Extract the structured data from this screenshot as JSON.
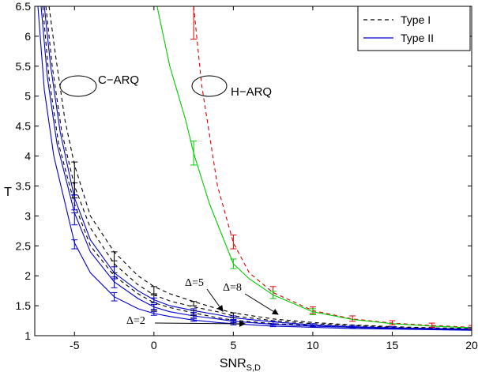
{
  "chart_data": {
    "type": "line",
    "xlabel": "SNR",
    "xlabel_sub": "S,D",
    "ylabel": "T",
    "xlim": [
      -7.5,
      20
    ],
    "ylim": [
      1,
      6.5
    ],
    "xticks": [
      -5,
      0,
      5,
      10,
      15,
      20
    ],
    "yticks": [
      1,
      1.5,
      2,
      2.5,
      3,
      3.5,
      4,
      4.5,
      5,
      5.5,
      6,
      6.5
    ],
    "grid": false,
    "legend_position": "top-right",
    "legend": [
      {
        "label": "Type I",
        "color": "#000000",
        "dash": true
      },
      {
        "label": "Type II",
        "color": "#0000cc",
        "dash": false
      }
    ],
    "annotations": {
      "carq": "C−ARQ",
      "harq": "H−ARQ",
      "delta5": "Δ=5",
      "delta8": "Δ=8",
      "delta2": "Δ=2"
    },
    "series": [
      {
        "group": "C-ARQ Type I",
        "color": "#000000",
        "dash": true,
        "x": [
          -6.6,
          -6.2,
          -5.6,
          -5,
          -4,
          -2.5,
          -1,
          0,
          1,
          2.5,
          4,
          5,
          7.5,
          10,
          12.5,
          15,
          17.5,
          20
        ],
        "y": [
          6.5,
          5.7,
          4.6,
          3.85,
          3.0,
          2.4,
          2.0,
          1.82,
          1.7,
          1.57,
          1.45,
          1.38,
          1.28,
          1.22,
          1.18,
          1.15,
          1.13,
          1.12
        ]
      },
      {
        "group": "C-ARQ Type I",
        "color": "#000000",
        "dash": true,
        "x": [
          -6.8,
          -6.4,
          -5.8,
          -5,
          -4,
          -2.5,
          -1,
          0,
          1,
          2.5,
          4,
          5,
          7.5,
          10,
          12.5,
          15,
          17.5,
          20
        ],
        "y": [
          6.5,
          5.5,
          4.4,
          3.5,
          2.8,
          2.2,
          1.85,
          1.68,
          1.58,
          1.48,
          1.4,
          1.33,
          1.25,
          1.2,
          1.17,
          1.14,
          1.12,
          1.11
        ]
      },
      {
        "group": "C-ARQ Type I",
        "color": "#000000",
        "dash": true,
        "x": [
          -7.0,
          -6.6,
          -6.0,
          -5,
          -4,
          -2.5,
          -1,
          0,
          1,
          2.5,
          4,
          5,
          7.5,
          10,
          12.5,
          15,
          17.5,
          20
        ],
        "y": [
          6.5,
          5.3,
          4.2,
          3.2,
          2.5,
          2.0,
          1.7,
          1.55,
          1.47,
          1.38,
          1.3,
          1.26,
          1.2,
          1.17,
          1.14,
          1.12,
          1.11,
          1.1
        ]
      },
      {
        "group": "C-ARQ Type II",
        "color": "#0000cc",
        "dash": false,
        "x": [
          -6.9,
          -6.5,
          -5.9,
          -5,
          -4,
          -2.5,
          -1,
          0,
          1,
          2.5,
          4,
          5,
          7.5,
          10,
          12.5,
          15,
          17.5,
          20
        ],
        "y": [
          6.5,
          5.5,
          4.4,
          3.3,
          2.6,
          2.05,
          1.75,
          1.6,
          1.5,
          1.42,
          1.35,
          1.3,
          1.23,
          1.18,
          1.15,
          1.13,
          1.12,
          1.11
        ]
      },
      {
        "group": "C-ARQ Type II",
        "color": "#0000cc",
        "dash": false,
        "x": [
          -7.1,
          -6.7,
          -6.1,
          -5,
          -4,
          -2.5,
          -1,
          0,
          1,
          2.5,
          4,
          5,
          7.5,
          10,
          12.5,
          15,
          17.5,
          20
        ],
        "y": [
          6.5,
          5.3,
          4.2,
          3.05,
          2.4,
          1.9,
          1.62,
          1.48,
          1.4,
          1.33,
          1.28,
          1.24,
          1.19,
          1.16,
          1.14,
          1.12,
          1.11,
          1.1
        ]
      },
      {
        "group": "C-ARQ Type II",
        "color": "#0000cc",
        "dash": false,
        "x": [
          -7.3,
          -6.9,
          -6.3,
          -5,
          -4,
          -2.5,
          -1,
          0,
          1,
          2.5,
          4,
          5,
          7.5,
          10,
          12.5,
          15,
          17.5,
          20
        ],
        "y": [
          6.5,
          5.1,
          4.0,
          2.55,
          2.05,
          1.65,
          1.45,
          1.37,
          1.32,
          1.26,
          1.22,
          1.2,
          1.16,
          1.14,
          1.12,
          1.11,
          1.1,
          1.09
        ]
      },
      {
        "group": "H-ARQ Type I",
        "color": "#dd0000",
        "dash": true,
        "x": [
          2.5,
          3,
          4,
          5,
          6,
          7.5,
          10,
          12.5,
          15,
          17.5,
          20
        ],
        "y": [
          6.5,
          5.2,
          3.5,
          2.55,
          2.05,
          1.72,
          1.42,
          1.28,
          1.21,
          1.17,
          1.14
        ]
      },
      {
        "group": "H-ARQ Type II",
        "color": "#00cc00",
        "dash": false,
        "x": [
          0.2,
          1,
          2,
          2.5,
          3.5,
          5,
          6,
          7.5,
          10,
          12.5,
          15,
          17.5,
          20
        ],
        "y": [
          6.5,
          5.5,
          4.6,
          4.05,
          3.2,
          2.2,
          1.95,
          1.68,
          1.4,
          1.27,
          1.2,
          1.16,
          1.13
        ]
      }
    ],
    "error_bars": [
      {
        "color": "#000000",
        "x": -5,
        "low": 3.3,
        "high": 3.9
      },
      {
        "color": "#000000",
        "x": -5,
        "low": 3.35,
        "high": 3.55
      },
      {
        "color": "#000000",
        "x": -2.5,
        "low": 2.05,
        "high": 2.4
      },
      {
        "color": "#000000",
        "x": -2.5,
        "low": 1.95,
        "high": 2.25
      },
      {
        "color": "#000000",
        "x": 0,
        "low": 1.7,
        "high": 1.82
      },
      {
        "color": "#000000",
        "x": 0,
        "low": 1.55,
        "high": 1.68
      },
      {
        "color": "#000000",
        "x": 0,
        "low": 1.42,
        "high": 1.52
      },
      {
        "color": "#000000",
        "x": 2.5,
        "low": 1.5,
        "high": 1.57
      },
      {
        "color": "#000000",
        "x": 2.5,
        "low": 1.34,
        "high": 1.42
      },
      {
        "color": "#000000",
        "x": 5,
        "low": 1.3,
        "high": 1.38
      },
      {
        "color": "#0000cc",
        "x": -5,
        "low": 3.1,
        "high": 3.35
      },
      {
        "color": "#0000cc",
        "x": -5,
        "low": 2.85,
        "high": 3.05
      },
      {
        "color": "#0000cc",
        "x": -5,
        "low": 2.45,
        "high": 2.6
      },
      {
        "color": "#0000cc",
        "x": -2.5,
        "low": 1.95,
        "high": 2.15
      },
      {
        "color": "#0000cc",
        "x": -2.5,
        "low": 1.8,
        "high": 1.98
      },
      {
        "color": "#0000cc",
        "x": -2.5,
        "low": 1.58,
        "high": 1.72
      },
      {
        "color": "#0000cc",
        "x": 0,
        "low": 1.55,
        "high": 1.63
      },
      {
        "color": "#0000cc",
        "x": 0,
        "low": 1.44,
        "high": 1.52
      },
      {
        "color": "#0000cc",
        "x": 0,
        "low": 1.34,
        "high": 1.4
      },
      {
        "color": "#0000cc",
        "x": 2.5,
        "low": 1.39,
        "high": 1.45
      },
      {
        "color": "#0000cc",
        "x": 2.5,
        "low": 1.3,
        "high": 1.36
      },
      {
        "color": "#0000cc",
        "x": 2.5,
        "low": 1.24,
        "high": 1.28
      },
      {
        "color": "#0000cc",
        "x": 5,
        "low": 1.27,
        "high": 1.33
      },
      {
        "color": "#0000cc",
        "x": 5,
        "low": 1.22,
        "high": 1.26
      },
      {
        "color": "#0000cc",
        "x": 5,
        "low": 1.18,
        "high": 1.22
      },
      {
        "color": "#0000cc",
        "x": 7.5,
        "low": 1.18,
        "high": 1.24
      },
      {
        "color": "#0000cc",
        "x": 7.5,
        "low": 1.15,
        "high": 1.2
      },
      {
        "color": "#0000cc",
        "x": 10,
        "low": 1.15,
        "high": 1.2
      },
      {
        "color": "#0000cc",
        "x": 12.5,
        "low": 1.13,
        "high": 1.17
      },
      {
        "color": "#0000cc",
        "x": 15,
        "low": 1.12,
        "high": 1.15
      },
      {
        "color": "#0000cc",
        "x": 17.5,
        "low": 1.11,
        "high": 1.14
      },
      {
        "color": "#0000cc",
        "x": 20,
        "low": 1.1,
        "high": 1.13
      },
      {
        "color": "#dd0000",
        "x": 2.5,
        "low": 5.95,
        "high": 6.5
      },
      {
        "color": "#dd0000",
        "x": 5,
        "low": 2.45,
        "high": 2.68
      },
      {
        "color": "#dd0000",
        "x": 7.5,
        "low": 1.62,
        "high": 1.82
      },
      {
        "color": "#dd0000",
        "x": 10,
        "low": 1.37,
        "high": 1.48
      },
      {
        "color": "#dd0000",
        "x": 12.5,
        "low": 1.24,
        "high": 1.33
      },
      {
        "color": "#dd0000",
        "x": 15,
        "low": 1.18,
        "high": 1.25
      },
      {
        "color": "#dd0000",
        "x": 17.5,
        "low": 1.14,
        "high": 1.21
      },
      {
        "color": "#dd0000",
        "x": 20,
        "low": 1.11,
        "high": 1.17
      },
      {
        "color": "#00cc00",
        "x": 2.5,
        "low": 3.85,
        "high": 4.25
      },
      {
        "color": "#00cc00",
        "x": 5,
        "low": 2.12,
        "high": 2.28
      },
      {
        "color": "#00cc00",
        "x": 7.5,
        "low": 1.62,
        "high": 1.74
      },
      {
        "color": "#00cc00",
        "x": 10,
        "low": 1.35,
        "high": 1.45
      }
    ]
  }
}
